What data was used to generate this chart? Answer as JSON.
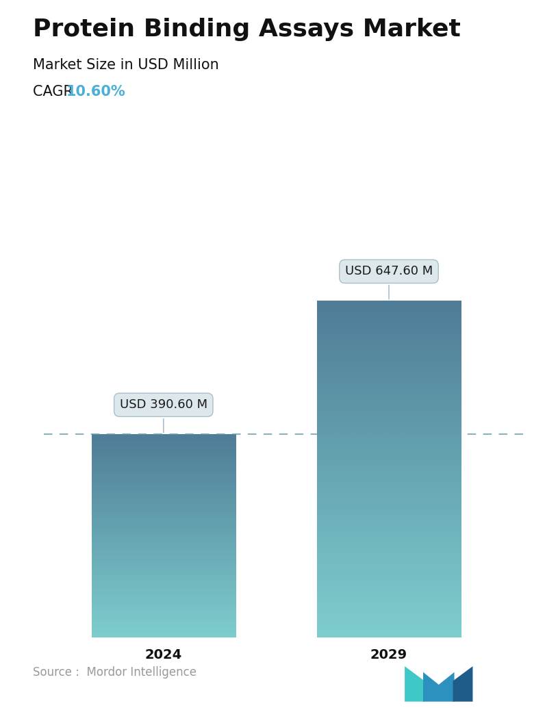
{
  "title": "Protein Binding Assays Market",
  "subtitle": "Market Size in USD Million",
  "cagr_label": "CAGR  ",
  "cagr_value": "10.60%",
  "cagr_color": "#4BAFD6",
  "categories": [
    "2024",
    "2029"
  ],
  "values": [
    390.6,
    647.6
  ],
  "bar_labels": [
    "USD 390.60 M",
    "USD 647.60 M"
  ],
  "bar_color_top": "#4F7C96",
  "bar_color_bottom": "#7ECECE",
  "dashed_line_color": "#6699AA",
  "source_text": "Source :  Mordor Intelligence",
  "source_color": "#999999",
  "background_color": "#ffffff",
  "title_fontsize": 26,
  "subtitle_fontsize": 15,
  "cagr_fontsize": 15,
  "bar_label_fontsize": 13,
  "tick_fontsize": 14,
  "source_fontsize": 12,
  "ylim": [
    0,
    750
  ],
  "figsize": [
    7.96,
    10.34
  ],
  "dpi": 100
}
